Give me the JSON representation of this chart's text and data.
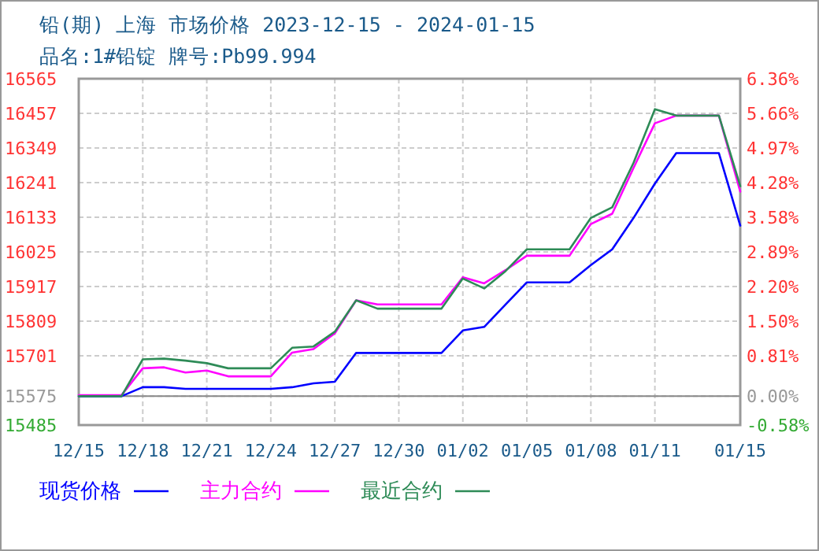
{
  "chart_data": {
    "type": "line",
    "title": "铅(期) 上海 市场价格 2023-12-15 - 2024-01-15",
    "subtitle": "品名:1#铅锭 牌号:Pb99.994",
    "x": [
      "2023-12-15",
      "2023-12-16",
      "2023-12-17",
      "2023-12-18",
      "2023-12-19",
      "2023-12-20",
      "2023-12-21",
      "2023-12-22",
      "2023-12-23",
      "2023-12-24",
      "2023-12-25",
      "2023-12-26",
      "2023-12-27",
      "2023-12-28",
      "2023-12-29",
      "2023-12-30",
      "2023-12-31",
      "2024-01-01",
      "2024-01-02",
      "2024-01-03",
      "2024-01-04",
      "2024-01-05",
      "2024-01-06",
      "2024-01-07",
      "2024-01-08",
      "2024-01-09",
      "2024-01-10",
      "2024-01-11",
      "2024-01-12",
      "2024-01-13",
      "2024-01-14",
      "2024-01-15"
    ],
    "series": [
      {
        "name": "现货价格",
        "color": "#0000ff",
        "values": [
          15575,
          15575,
          15575,
          15603,
          15603,
          15598,
          15598,
          15598,
          15598,
          15598,
          15603,
          15615,
          15620,
          15710,
          15710,
          15710,
          15710,
          15710,
          15780,
          15791,
          15861,
          15930,
          15930,
          15930,
          15984,
          16033,
          16131,
          16238,
          16333,
          16333,
          16333,
          16107
        ]
      },
      {
        "name": "主力合约",
        "color": "#ff00ff",
        "values": [
          15578,
          15578,
          15578,
          15662,
          15665,
          15649,
          15655,
          15637,
          15637,
          15637,
          15711,
          15722,
          15771,
          15874,
          15861,
          15861,
          15861,
          15861,
          15946,
          15927,
          15968,
          16013,
          16013,
          16013,
          16112,
          16144,
          16287,
          16426,
          16450,
          16450,
          16450,
          16213
        ]
      },
      {
        "name": "最近合约",
        "color": "#2e8b57",
        "values": [
          15575,
          15575,
          15575,
          15690,
          15692,
          15686,
          15678,
          15662,
          15662,
          15662,
          15726,
          15730,
          15776,
          15874,
          15848,
          15848,
          15848,
          15848,
          15942,
          15911,
          15965,
          16033,
          16033,
          16033,
          16131,
          16164,
          16303,
          16470,
          16450,
          16450,
          16450,
          16230
        ]
      }
    ],
    "xlim": [
      "2023-12-15",
      "2024-01-15"
    ],
    "xticks": [
      {
        "value": "2023-12-15",
        "label": "12/15"
      },
      {
        "value": "2023-12-18",
        "label": "12/18"
      },
      {
        "value": "2023-12-21",
        "label": "12/21"
      },
      {
        "value": "2023-12-24",
        "label": "12/24"
      },
      {
        "value": "2023-12-27",
        "label": "12/27"
      },
      {
        "value": "2023-12-30",
        "label": "12/30"
      },
      {
        "value": "2024-01-02",
        "label": "01/02"
      },
      {
        "value": "2024-01-05",
        "label": "01/05"
      },
      {
        "value": "2024-01-08",
        "label": "01/08"
      },
      {
        "value": "2024-01-11",
        "label": "01/11"
      },
      {
        "value": "2024-01-15",
        "label": "01/15"
      }
    ],
    "ylim": [
      15485,
      16565
    ],
    "yticks": [
      15485,
      15575,
      15701,
      15809,
      15917,
      16025,
      16133,
      16241,
      16349,
      16457,
      16565
    ],
    "y2lim": [
      -0.58,
      6.36
    ],
    "y2ticks": [
      {
        "value": -0.58,
        "label": "-0.58%"
      },
      {
        "value": 0,
        "label": "0.00%"
      },
      {
        "value": 0.81,
        "label": "0.81%"
      },
      {
        "value": 1.5,
        "label": "1.50%"
      },
      {
        "value": 2.2,
        "label": "2.20%"
      },
      {
        "value": 2.89,
        "label": "2.89%"
      },
      {
        "value": 3.58,
        "label": "3.58%"
      },
      {
        "value": 4.28,
        "label": "4.28%"
      },
      {
        "value": 4.97,
        "label": "4.97%"
      },
      {
        "value": 5.66,
        "label": "5.66%"
      },
      {
        "value": 6.36,
        "label": "6.36%"
      }
    ],
    "grid": true,
    "legend": "bottom",
    "marker": "none",
    "line_style": "solid"
  }
}
